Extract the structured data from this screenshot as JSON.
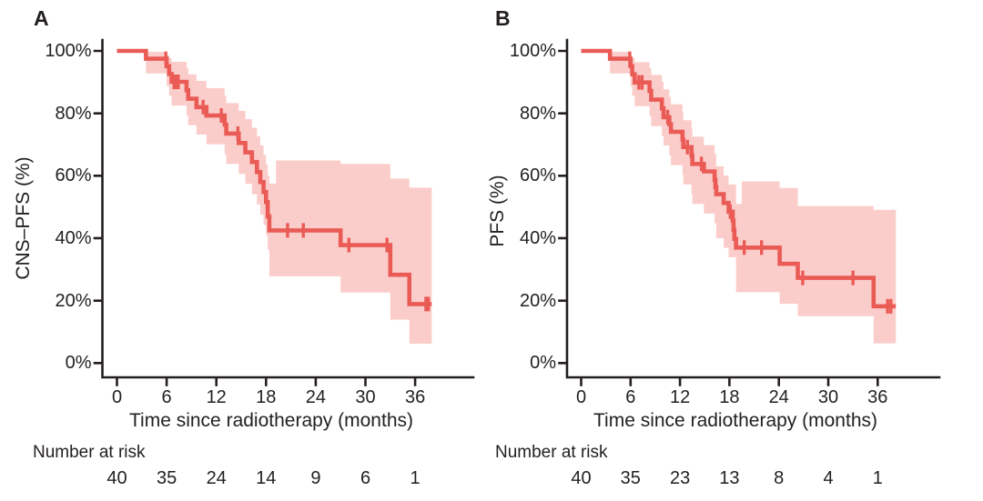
{
  "figure": {
    "text_color": "#231f20",
    "background": "#ffffff"
  },
  "chart_data": [
    {
      "type": "line",
      "subtype": "kaplan-meier-step",
      "panel_label": "A",
      "ylabel": "CNS–PFS (%)",
      "xlabel": "Time since radiotherapy (months)",
      "x_ticks": [
        0,
        6,
        12,
        18,
        24,
        30,
        36
      ],
      "y_ticks": [
        0,
        20,
        40,
        60,
        80,
        100
      ],
      "y_tick_suffix": "%",
      "xlim": [
        0,
        38
      ],
      "ylim": [
        0,
        100
      ],
      "grid": false,
      "legend": "none",
      "line_color": "#EA5B56",
      "band_color": "#FBCDCA",
      "survival_steps": [
        [
          0,
          100
        ],
        [
          3.5,
          97.5
        ],
        [
          6.0,
          95.1
        ],
        [
          6.3,
          92.6
        ],
        [
          6.6,
          90.1
        ],
        [
          8.4,
          87.4
        ],
        [
          8.6,
          84.7
        ],
        [
          9.6,
          82.0
        ],
        [
          10.8,
          79.3
        ],
        [
          13.0,
          76.4
        ],
        [
          13.2,
          73.5
        ],
        [
          14.7,
          70.5
        ],
        [
          15.5,
          67.5
        ],
        [
          16.3,
          64.4
        ],
        [
          16.9,
          61.2
        ],
        [
          17.3,
          58.0
        ],
        [
          17.7,
          54.8
        ],
        [
          18.0,
          51.6
        ],
        [
          18.2,
          47.0
        ],
        [
          18.4,
          42.5
        ],
        [
          27.0,
          37.8
        ],
        [
          33.0,
          28.3
        ],
        [
          35.3,
          18.9
        ]
      ],
      "censor_times": [
        5.9,
        6.9,
        7.2,
        7.4,
        10.4,
        12.6,
        14.6,
        20.6,
        22.5,
        28.0,
        32.6,
        37.3,
        37.6
      ],
      "follow_up_end": 38.0,
      "ci_band": [
        [
          3.5,
          92.8,
          99.7
        ],
        [
          6.0,
          88.7,
          98.7
        ],
        [
          6.3,
          85.6,
          97.7
        ],
        [
          6.6,
          82.5,
          96.5
        ],
        [
          8.4,
          79.3,
          94.6
        ],
        [
          8.6,
          76.2,
          92.5
        ],
        [
          9.6,
          73.2,
          90.4
        ],
        [
          10.8,
          70.1,
          88.1
        ],
        [
          13.0,
          66.9,
          85.7
        ],
        [
          13.2,
          63.8,
          83.3
        ],
        [
          14.7,
          60.6,
          80.8
        ],
        [
          15.5,
          57.4,
          78.1
        ],
        [
          16.3,
          54.1,
          75.4
        ],
        [
          16.9,
          50.8,
          72.6
        ],
        [
          17.3,
          47.5,
          69.7
        ],
        [
          17.7,
          44.2,
          66.7
        ],
        [
          18.0,
          40.9,
          63.6
        ],
        [
          18.2,
          36.3,
          60.1
        ],
        [
          18.4,
          27.8,
          57.5
        ],
        [
          19.2,
          27.8,
          64.9
        ],
        [
          27.0,
          22.6,
          63.8
        ],
        [
          33.0,
          13.9,
          59.1
        ],
        [
          35.3,
          6.2,
          56.2
        ]
      ],
      "number_at_risk": {
        "title": "Number at risk",
        "times": [
          0,
          6,
          12,
          18,
          24,
          30,
          36
        ],
        "counts": [
          40,
          35,
          24,
          14,
          9,
          6,
          1
        ]
      }
    },
    {
      "type": "line",
      "subtype": "kaplan-meier-step",
      "panel_label": "B",
      "ylabel": "PFS (%)",
      "xlabel": "Time since radiotherapy (months)",
      "x_ticks": [
        0,
        6,
        12,
        18,
        24,
        30,
        36
      ],
      "y_ticks": [
        0,
        20,
        40,
        60,
        80,
        100
      ],
      "y_tick_suffix": "%",
      "xlim": [
        0,
        38
      ],
      "ylim": [
        0,
        100
      ],
      "grid": false,
      "legend": "none",
      "line_color": "#EA5B56",
      "band_color": "#FBCDCA",
      "survival_steps": [
        [
          0,
          100
        ],
        [
          3.5,
          97.5
        ],
        [
          6.0,
          95.1
        ],
        [
          6.2,
          92.5
        ],
        [
          6.5,
          89.9
        ],
        [
          8.3,
          87.2
        ],
        [
          8.5,
          84.4
        ],
        [
          9.8,
          81.6
        ],
        [
          10.0,
          78.8
        ],
        [
          10.7,
          76.5
        ],
        [
          10.9,
          74.1
        ],
        [
          12.3,
          71.6
        ],
        [
          12.4,
          69.2
        ],
        [
          13.4,
          66.5
        ],
        [
          13.5,
          63.8
        ],
        [
          14.9,
          61.4
        ],
        [
          16.2,
          58.7
        ],
        [
          16.3,
          56.4
        ],
        [
          16.4,
          54.1
        ],
        [
          17.3,
          51.3
        ],
        [
          17.9,
          48.5
        ],
        [
          18.4,
          45.6
        ],
        [
          18.5,
          42.7
        ],
        [
          18.6,
          39.8
        ],
        [
          18.8,
          37.0
        ],
        [
          24.1,
          31.8
        ],
        [
          26.3,
          27.3
        ],
        [
          35.5,
          18.2
        ]
      ],
      "censor_times": [
        5.9,
        7.0,
        7.4,
        10.5,
        12.9,
        14.6,
        18.1,
        19.8,
        21.9,
        26.9,
        33.0,
        37.2,
        37.6
      ],
      "follow_up_end": 38.2,
      "ci_band": [
        [
          3.5,
          92.8,
          99.7
        ],
        [
          6.0,
          88.7,
          98.7
        ],
        [
          6.2,
          85.6,
          97.7
        ],
        [
          6.5,
          82.3,
          96.4
        ],
        [
          8.3,
          79.1,
          94.5
        ],
        [
          8.5,
          75.9,
          92.3
        ],
        [
          9.8,
          72.8,
          90.1
        ],
        [
          10.0,
          69.7,
          87.7
        ],
        [
          10.7,
          66.5,
          85.3
        ],
        [
          10.9,
          63.4,
          82.9
        ],
        [
          12.3,
          60.3,
          80.4
        ],
        [
          12.4,
          57.2,
          77.8
        ],
        [
          13.4,
          54.1,
          75.1
        ],
        [
          13.5,
          51.0,
          72.5
        ],
        [
          14.9,
          47.9,
          69.8
        ],
        [
          16.2,
          44.8,
          67.0
        ],
        [
          16.4,
          40.0,
          63.0
        ],
        [
          17.3,
          36.9,
          60.1
        ],
        [
          17.9,
          33.9,
          57.2
        ],
        [
          18.8,
          22.7,
          51.0
        ],
        [
          19.5,
          22.7,
          58.2
        ],
        [
          24.1,
          19.0,
          56.1
        ],
        [
          26.3,
          15.0,
          50.3
        ],
        [
          35.5,
          6.3,
          49.1
        ]
      ],
      "number_at_risk": {
        "title": "Number at risk",
        "times": [
          0,
          6,
          12,
          18,
          24,
          30,
          36
        ],
        "counts": [
          40,
          35,
          23,
          13,
          8,
          4,
          1
        ]
      }
    }
  ]
}
